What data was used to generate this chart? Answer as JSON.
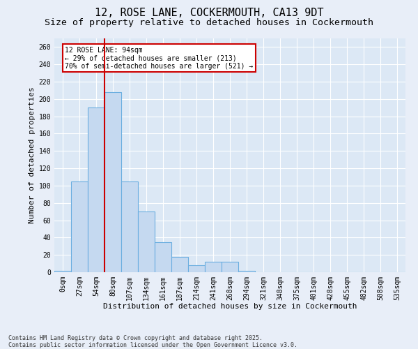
{
  "title": "12, ROSE LANE, COCKERMOUTH, CA13 9DT",
  "subtitle": "Size of property relative to detached houses in Cockermouth",
  "xlabel": "Distribution of detached houses by size in Cockermouth",
  "ylabel": "Number of detached properties",
  "categories": [
    "0sqm",
    "27sqm",
    "54sqm",
    "80sqm",
    "107sqm",
    "134sqm",
    "161sqm",
    "187sqm",
    "214sqm",
    "241sqm",
    "268sqm",
    "294sqm",
    "321sqm",
    "348sqm",
    "375sqm",
    "401sqm",
    "428sqm",
    "455sqm",
    "482sqm",
    "508sqm",
    "535sqm"
  ],
  "values": [
    2,
    105,
    190,
    208,
    105,
    70,
    35,
    18,
    8,
    12,
    12,
    2,
    0,
    0,
    0,
    0,
    0,
    0,
    0,
    0,
    0
  ],
  "bar_color": "#c5d9f0",
  "bar_edge_color": "#6aaee0",
  "fig_bg_color": "#e8eef8",
  "ax_bg_color": "#dce8f5",
  "grid_color": "#ffffff",
  "vline_color": "#cc0000",
  "vline_x": 2.5,
  "annotation_text": "12 ROSE LANE: 94sqm\n← 29% of detached houses are smaller (213)\n70% of semi-detached houses are larger (521) →",
  "annotation_edge_color": "#cc0000",
  "ylim": [
    0,
    270
  ],
  "yticks": [
    0,
    20,
    40,
    60,
    80,
    100,
    120,
    140,
    160,
    180,
    200,
    220,
    240,
    260
  ],
  "footer": "Contains HM Land Registry data © Crown copyright and database right 2025.\nContains public sector information licensed under the Open Government Licence v3.0.",
  "title_fontsize": 11,
  "subtitle_fontsize": 9.5,
  "axis_label_fontsize": 8,
  "tick_fontsize": 7,
  "annot_fontsize": 7,
  "footer_fontsize": 6
}
